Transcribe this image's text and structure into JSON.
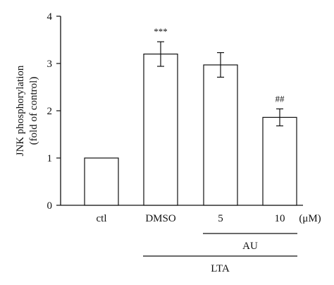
{
  "chart_data": {
    "type": "bar",
    "ylabel_line1": "JNK phosphorylation",
    "ylabel_line2": "(fold of control)",
    "ylim": [
      0,
      4
    ],
    "yticks": [
      0,
      1,
      2,
      3,
      4
    ],
    "categories": [
      "ctl",
      "DMSO",
      "5",
      "10"
    ],
    "values": [
      1.0,
      3.2,
      2.97,
      1.86
    ],
    "errors": [
      0.0,
      0.26,
      0.26,
      0.18
    ],
    "significance": [
      "",
      "***",
      "",
      "##"
    ],
    "unit_label": "(μM)",
    "bracket_labels": [
      {
        "text": "AU",
        "from": 2,
        "to": 3
      },
      {
        "text": "LTA",
        "from": 1,
        "to": 3
      }
    ],
    "bar_fill": "#ffffff",
    "bar_stroke": "#111111"
  }
}
